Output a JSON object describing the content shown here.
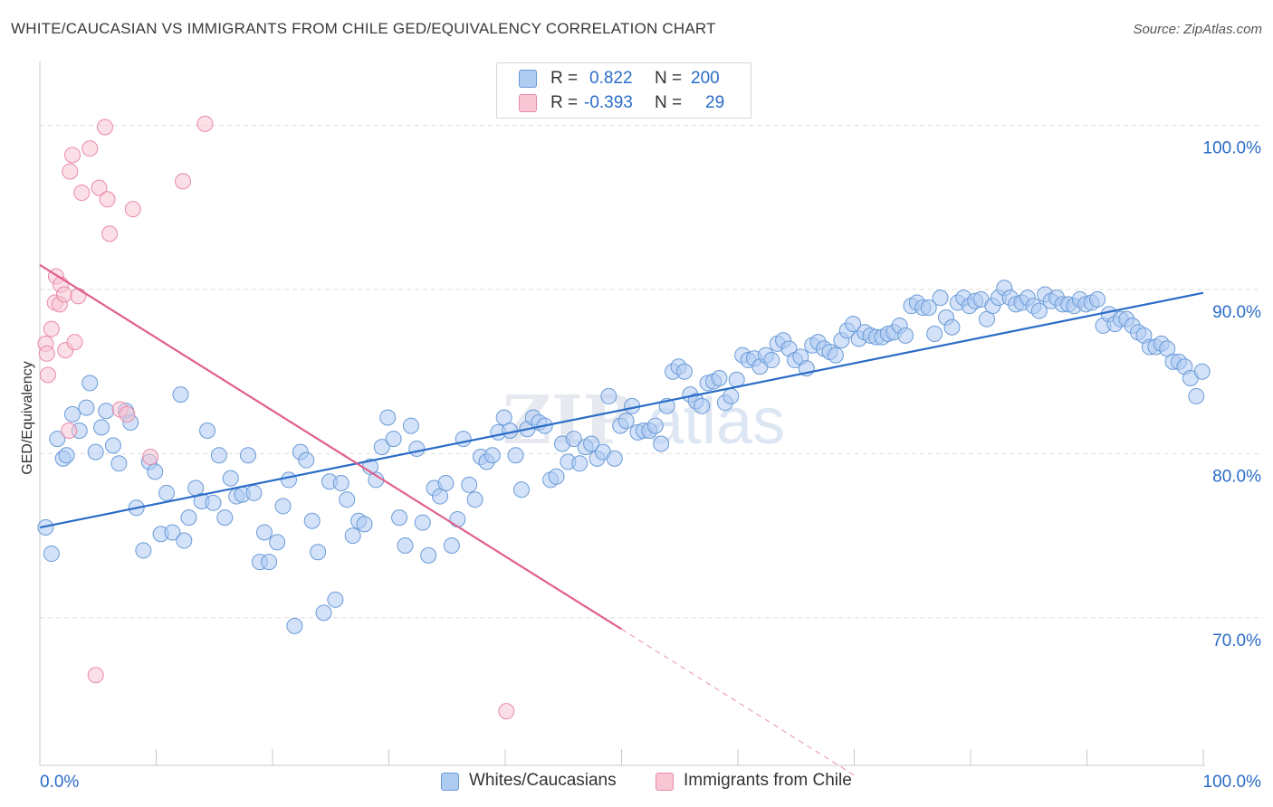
{
  "header": {
    "title": "WHITE/CAUCASIAN VS IMMIGRANTS FROM CHILE GED/EQUIVALENCY CORRELATION CHART",
    "source": "Source: ZipAtlas.com"
  },
  "legend": {
    "rows": [
      {
        "r_label": "R =",
        "r_value": "0.822",
        "n_label": "N =",
        "n_value": "200"
      },
      {
        "r_label": "R =",
        "r_value": "-0.393",
        "n_label": "N =",
        "n_value": "29"
      }
    ]
  },
  "watermark": {
    "zip": "ZIP",
    "atlas": "atlas"
  },
  "chart_data": {
    "type": "scatter",
    "title": "WHITE/CAUCASIAN VS IMMIGRANTS FROM CHILE GED/EQUIVALENCY CORRELATION CHART",
    "xlabel": "",
    "ylabel": "GED/Equivalency",
    "xlim": [
      0,
      100
    ],
    "ylim": [
      61,
      105
    ],
    "x_tick_labels": [
      "0.0%",
      "100.0%"
    ],
    "y_ticks": [
      70,
      80,
      90,
      100
    ],
    "y_tick_labels": [
      "70.0%",
      "80.0%",
      "90.0%",
      "100.0%"
    ],
    "grid": true,
    "legend_position": "top-center",
    "colors": {
      "white_fill": "#aecbf2",
      "white_stroke": "#6a9bd8",
      "white_line": "#2a6cc7",
      "chile_fill": "#f7c5d3",
      "chile_stroke": "#e98aa8",
      "chile_line": "#e0608c",
      "value_text": "#2a6cc7"
    },
    "series": [
      {
        "name": "Whites/Caucasians",
        "R": 0.822,
        "N": 200,
        "trend": {
          "x": [
            0,
            100
          ],
          "y": [
            75.5,
            89.8
          ]
        },
        "points": [
          [
            0.5,
            75.5
          ],
          [
            1,
            73.9
          ],
          [
            1.5,
            80.9
          ],
          [
            2,
            79.7
          ],
          [
            2.3,
            79.9
          ],
          [
            2.8,
            82.4
          ],
          [
            3.4,
            81.4
          ],
          [
            4,
            82.8
          ],
          [
            4.3,
            84.3
          ],
          [
            4.8,
            80.1
          ],
          [
            5.3,
            81.6
          ],
          [
            5.7,
            82.6
          ],
          [
            6.3,
            80.5
          ],
          [
            6.8,
            79.4
          ],
          [
            7.4,
            82.6
          ],
          [
            7.8,
            81.9
          ],
          [
            8.3,
            76.7
          ],
          [
            8.9,
            74.1
          ],
          [
            9.4,
            79.5
          ],
          [
            9.9,
            78.9
          ],
          [
            10.4,
            75.1
          ],
          [
            10.9,
            77.6
          ],
          [
            11.4,
            75.2
          ],
          [
            12.1,
            83.6
          ],
          [
            12.4,
            74.7
          ],
          [
            12.8,
            76.1
          ],
          [
            13.4,
            77.9
          ],
          [
            13.9,
            77.1
          ],
          [
            14.4,
            81.4
          ],
          [
            14.9,
            77.0
          ],
          [
            15.4,
            79.9
          ],
          [
            15.9,
            76.1
          ],
          [
            16.4,
            78.5
          ],
          [
            16.9,
            77.4
          ],
          [
            17.4,
            77.5
          ],
          [
            17.9,
            79.9
          ],
          [
            18.4,
            77.6
          ],
          [
            18.9,
            73.4
          ],
          [
            19.3,
            75.2
          ],
          [
            19.7,
            73.4
          ],
          [
            20.4,
            74.6
          ],
          [
            20.9,
            76.8
          ],
          [
            21.4,
            78.4
          ],
          [
            21.9,
            69.5
          ],
          [
            22.4,
            80.1
          ],
          [
            22.9,
            79.6
          ],
          [
            23.4,
            75.9
          ],
          [
            23.9,
            74.0
          ],
          [
            24.4,
            70.3
          ],
          [
            24.9,
            78.3
          ],
          [
            25.4,
            71.1
          ],
          [
            25.9,
            78.2
          ],
          [
            26.4,
            77.2
          ],
          [
            26.9,
            75.0
          ],
          [
            27.4,
            75.9
          ],
          [
            27.9,
            75.7
          ],
          [
            28.4,
            79.2
          ],
          [
            28.9,
            78.4
          ],
          [
            29.4,
            80.4
          ],
          [
            29.9,
            82.2
          ],
          [
            30.4,
            80.9
          ],
          [
            30.9,
            76.1
          ],
          [
            31.4,
            74.4
          ],
          [
            31.9,
            81.7
          ],
          [
            32.4,
            80.3
          ],
          [
            32.9,
            75.8
          ],
          [
            33.4,
            73.8
          ],
          [
            33.9,
            77.9
          ],
          [
            34.4,
            77.4
          ],
          [
            34.9,
            78.2
          ],
          [
            35.4,
            74.4
          ],
          [
            35.9,
            76.0
          ],
          [
            36.4,
            80.9
          ],
          [
            36.9,
            78.1
          ],
          [
            37.4,
            77.2
          ],
          [
            37.9,
            79.8
          ],
          [
            38.4,
            79.5
          ],
          [
            38.9,
            79.9
          ],
          [
            39.4,
            81.3
          ],
          [
            39.9,
            82.2
          ],
          [
            40.4,
            81.4
          ],
          [
            40.9,
            79.9
          ],
          [
            41.4,
            77.8
          ],
          [
            41.9,
            81.5
          ],
          [
            42.4,
            82.2
          ],
          [
            42.9,
            81.9
          ],
          [
            43.4,
            81.7
          ],
          [
            43.9,
            78.4
          ],
          [
            44.4,
            78.6
          ],
          [
            44.9,
            80.6
          ],
          [
            45.4,
            79.5
          ],
          [
            45.9,
            80.9
          ],
          [
            46.4,
            79.4
          ],
          [
            46.9,
            80.4
          ],
          [
            47.4,
            80.6
          ],
          [
            47.9,
            79.7
          ],
          [
            48.4,
            80.1
          ],
          [
            48.9,
            83.5
          ],
          [
            49.4,
            79.7
          ],
          [
            49.9,
            81.7
          ],
          [
            50.4,
            82.0
          ],
          [
            50.9,
            82.9
          ],
          [
            51.4,
            81.3
          ],
          [
            51.9,
            81.4
          ],
          [
            52.4,
            81.4
          ],
          [
            52.9,
            81.7
          ],
          [
            53.4,
            80.6
          ],
          [
            53.9,
            82.9
          ],
          [
            54.4,
            85.0
          ],
          [
            54.9,
            85.3
          ],
          [
            55.4,
            85.0
          ],
          [
            55.9,
            83.6
          ],
          [
            56.4,
            83.2
          ],
          [
            56.9,
            82.9
          ],
          [
            57.4,
            84.3
          ],
          [
            57.9,
            84.4
          ],
          [
            58.4,
            84.6
          ],
          [
            58.9,
            83.1
          ],
          [
            59.4,
            83.5
          ],
          [
            59.9,
            84.5
          ],
          [
            60.4,
            86.0
          ],
          [
            60.9,
            85.7
          ],
          [
            61.4,
            85.8
          ],
          [
            61.9,
            85.3
          ],
          [
            62.4,
            86.0
          ],
          [
            62.9,
            85.7
          ],
          [
            63.4,
            86.7
          ],
          [
            63.9,
            86.9
          ],
          [
            64.4,
            86.4
          ],
          [
            64.9,
            85.7
          ],
          [
            65.4,
            85.9
          ],
          [
            65.9,
            85.2
          ],
          [
            66.4,
            86.6
          ],
          [
            66.9,
            86.8
          ],
          [
            67.4,
            86.4
          ],
          [
            67.9,
            86.2
          ],
          [
            68.4,
            86.0
          ],
          [
            68.9,
            86.9
          ],
          [
            69.4,
            87.5
          ],
          [
            69.9,
            87.9
          ],
          [
            70.4,
            87.0
          ],
          [
            70.9,
            87.4
          ],
          [
            71.4,
            87.2
          ],
          [
            71.9,
            87.1
          ],
          [
            72.4,
            87.1
          ],
          [
            72.9,
            87.3
          ],
          [
            73.4,
            87.4
          ],
          [
            73.9,
            87.8
          ],
          [
            74.4,
            87.2
          ],
          [
            74.9,
            89.0
          ],
          [
            75.4,
            89.2
          ],
          [
            75.9,
            88.9
          ],
          [
            76.4,
            88.9
          ],
          [
            76.9,
            87.3
          ],
          [
            77.4,
            89.5
          ],
          [
            77.9,
            88.3
          ],
          [
            78.4,
            87.7
          ],
          [
            78.9,
            89.2
          ],
          [
            79.4,
            89.5
          ],
          [
            79.9,
            89.0
          ],
          [
            80.4,
            89.3
          ],
          [
            80.9,
            89.4
          ],
          [
            81.4,
            88.2
          ],
          [
            81.9,
            89.0
          ],
          [
            82.4,
            89.5
          ],
          [
            82.9,
            90.1
          ],
          [
            83.4,
            89.5
          ],
          [
            83.9,
            89.1
          ],
          [
            84.4,
            89.2
          ],
          [
            84.9,
            89.5
          ],
          [
            85.4,
            89.0
          ],
          [
            85.9,
            88.7
          ],
          [
            86.4,
            89.7
          ],
          [
            86.9,
            89.3
          ],
          [
            87.4,
            89.5
          ],
          [
            87.9,
            89.1
          ],
          [
            88.4,
            89.1
          ],
          [
            88.9,
            89.0
          ],
          [
            89.4,
            89.4
          ],
          [
            89.9,
            89.1
          ],
          [
            90.4,
            89.2
          ],
          [
            90.9,
            89.4
          ],
          [
            91.4,
            87.8
          ],
          [
            91.9,
            88.5
          ],
          [
            92.4,
            87.9
          ],
          [
            92.9,
            88.2
          ],
          [
            93.4,
            88.2
          ],
          [
            93.9,
            87.8
          ],
          [
            94.4,
            87.4
          ],
          [
            94.9,
            87.2
          ],
          [
            95.4,
            86.5
          ],
          [
            95.9,
            86.5
          ],
          [
            96.4,
            86.7
          ],
          [
            96.9,
            86.4
          ],
          [
            97.4,
            85.6
          ],
          [
            97.9,
            85.6
          ],
          [
            98.4,
            85.3
          ],
          [
            98.9,
            84.6
          ],
          [
            99.4,
            83.5
          ],
          [
            99.9,
            85.0
          ]
        ]
      },
      {
        "name": "Immigrants from Chile",
        "R": -0.393,
        "N": 29,
        "trend": {
          "x": [
            0,
            50
          ],
          "y": [
            91.5,
            69.3
          ]
        },
        "trend_dashed": {
          "x": [
            50,
            70
          ],
          "y": [
            69.3,
            60.4
          ]
        },
        "points": [
          [
            0.5,
            86.7
          ],
          [
            0.6,
            86.1
          ],
          [
            0.7,
            84.8
          ],
          [
            1,
            87.6
          ],
          [
            1.3,
            89.2
          ],
          [
            1.4,
            90.8
          ],
          [
            1.7,
            89.1
          ],
          [
            1.8,
            90.3
          ],
          [
            2.1,
            89.7
          ],
          [
            2.2,
            86.3
          ],
          [
            2.5,
            81.4
          ],
          [
            2.6,
            97.2
          ],
          [
            2.8,
            98.2
          ],
          [
            3,
            86.8
          ],
          [
            3.3,
            89.6
          ],
          [
            3.6,
            95.9
          ],
          [
            4.3,
            98.6
          ],
          [
            4.8,
            66.5
          ],
          [
            5.1,
            96.2
          ],
          [
            5.6,
            99.9
          ],
          [
            5.8,
            95.5
          ],
          [
            6,
            93.4
          ],
          [
            6.9,
            82.7
          ],
          [
            7.5,
            82.4
          ],
          [
            8,
            94.9
          ],
          [
            9.5,
            79.8
          ],
          [
            12.3,
            96.6
          ],
          [
            14.2,
            100.1
          ],
          [
            40.1,
            64.3
          ]
        ]
      }
    ]
  },
  "axes": {
    "ylabel": "GED/Equivalency",
    "x_left": "0.0%",
    "x_right": "100.0%",
    "y_labels": [
      "70.0%",
      "80.0%",
      "90.0%",
      "100.0%"
    ]
  },
  "bottom_legend": {
    "items": [
      {
        "label": "Whites/Caucasians"
      },
      {
        "label": "Immigrants from Chile"
      }
    ]
  }
}
